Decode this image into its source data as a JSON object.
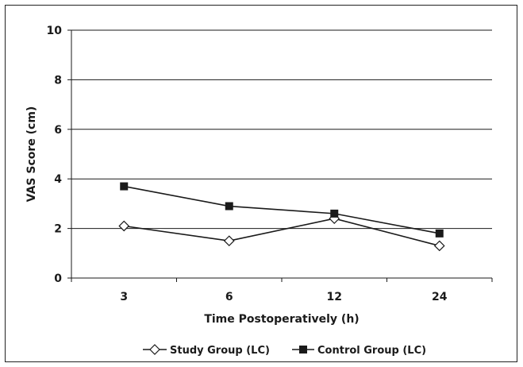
{
  "chart_data": {
    "type": "line",
    "title": "",
    "xlabel": "Time Postoperatively (h)",
    "ylabel": "VAS Score (cm)",
    "categories": [
      "3",
      "6",
      "12",
      "24"
    ],
    "ylim": [
      0,
      10
    ],
    "yticks": [
      "0",
      "2",
      "4",
      "6",
      "8",
      "10"
    ],
    "grid": "horizontal",
    "legend_position": "bottom",
    "series": [
      {
        "name": "Study Group (LC)",
        "marker": "open-diamond",
        "color": "#1a1a1a",
        "values": [
          2.1,
          1.5,
          2.4,
          1.3
        ]
      },
      {
        "name": "Control Group (LC)",
        "marker": "filled-square",
        "color": "#1a1a1a",
        "values": [
          3.7,
          2.9,
          2.6,
          1.8
        ]
      }
    ]
  }
}
